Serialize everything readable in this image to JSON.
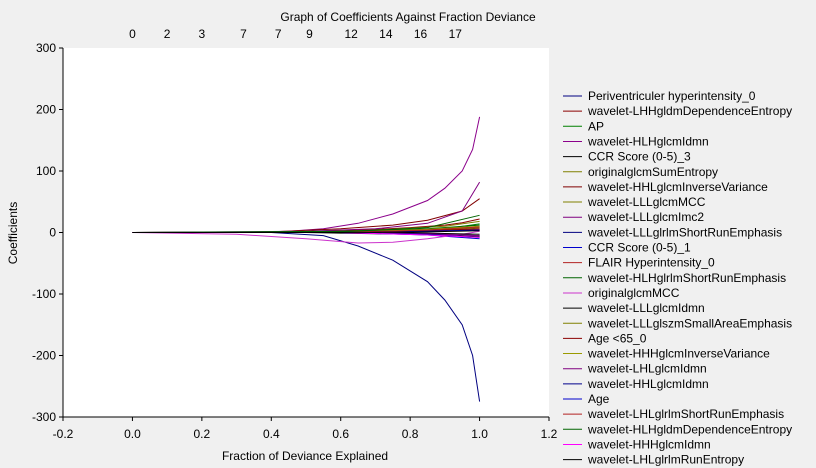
{
  "chart_data": {
    "type": "line",
    "title": "Graph of Coefficients Against Fraction Deviance",
    "xlabel": "Fraction of Deviance Explained",
    "ylabel": "Coefficients",
    "xlim": [
      -0.2,
      1.2
    ],
    "ylim": [
      -300,
      300
    ],
    "xticks": [
      "-0.2",
      "0.0",
      "0.2",
      "0.4",
      "0.6",
      "0.8",
      "1.0",
      "1.2"
    ],
    "yticks": [
      "300",
      "200",
      "100",
      "0",
      "-100",
      "-200",
      "-300"
    ],
    "top_axis": {
      "positions": [
        0.0,
        0.1,
        0.2,
        0.32,
        0.42,
        0.51,
        0.63,
        0.73,
        0.83,
        0.93
      ],
      "labels": [
        "0",
        "2",
        "3",
        "7",
        "7",
        "9",
        "12",
        "14",
        "16",
        "17"
      ]
    },
    "legend_position": "right",
    "series": [
      {
        "name": "Periventriculer hyperintensity_0",
        "color": "#000080",
        "x": [
          0.0,
          0.2,
          0.4,
          0.55,
          0.65,
          0.75,
          0.85,
          0.9,
          0.95,
          0.98,
          1.0
        ],
        "y": [
          0,
          0,
          0,
          -5,
          -22,
          -45,
          -80,
          -110,
          -150,
          -200,
          -275
        ]
      },
      {
        "name": "wavelet-LHHgldmDependenceEntropy",
        "color": "#8b0000",
        "x": [
          0.0,
          0.4,
          0.6,
          0.7,
          0.8,
          0.9,
          0.95,
          1.0
        ],
        "y": [
          0,
          0,
          3,
          5,
          8,
          12,
          16,
          22
        ]
      },
      {
        "name": "AP",
        "color": "#008000",
        "x": [
          0.0,
          0.5,
          0.7,
          0.9,
          1.0
        ],
        "y": [
          0,
          1,
          3,
          6,
          14
        ]
      },
      {
        "name": "wavelet-HLHglcmIdmn",
        "color": "#8b008b",
        "x": [
          0.0,
          0.3,
          0.45,
          0.55,
          0.65,
          0.75,
          0.85,
          0.9,
          0.95,
          0.98,
          1.0
        ],
        "y": [
          0,
          0,
          2,
          6,
          15,
          30,
          52,
          72,
          100,
          135,
          188
        ]
      },
      {
        "name": "CCR Score (0-5)_3",
        "color": "#000000",
        "x": [
          0.0,
          0.5,
          0.8,
          1.0
        ],
        "y": [
          0,
          0,
          -3,
          -7
        ]
      },
      {
        "name": "originalglcmSumEntropy",
        "color": "#808000",
        "x": [
          0.0,
          0.5,
          0.8,
          0.95,
          1.0
        ],
        "y": [
          0,
          0,
          3,
          6,
          8
        ]
      },
      {
        "name": "wavelet-HHLglcmInverseVariance",
        "color": "#800000",
        "x": [
          0.0,
          0.4,
          0.6,
          0.75,
          0.85,
          0.95,
          1.0
        ],
        "y": [
          0,
          1,
          6,
          12,
          20,
          35,
          55
        ]
      },
      {
        "name": "wavelet-LLLglcmMCC",
        "color": "#808000",
        "x": [
          0.0,
          0.5,
          0.7,
          0.9,
          1.0
        ],
        "y": [
          0,
          0,
          4,
          10,
          18
        ]
      },
      {
        "name": "wavelet-LLLglcmImc2",
        "color": "#800080",
        "x": [
          0.0,
          0.5,
          0.7,
          0.85,
          0.95,
          1.0
        ],
        "y": [
          0,
          2,
          6,
          15,
          35,
          82
        ]
      },
      {
        "name": "wavelet-LLLglrlmShortRunEmphasis",
        "color": "#000080",
        "x": [
          0.0,
          0.6,
          0.85,
          1.0
        ],
        "y": [
          0,
          0,
          -2,
          -5
        ]
      },
      {
        "name": "CCR Score (0-5)_1",
        "color": "#0000cd",
        "x": [
          0.0,
          0.6,
          0.85,
          1.0
        ],
        "y": [
          0,
          0,
          -4,
          -10
        ]
      },
      {
        "name": "FLAIR Hyperintensity_0",
        "color": "#b22222",
        "x": [
          0.0,
          0.6,
          0.8,
          1.0
        ],
        "y": [
          0,
          0,
          2,
          5
        ]
      },
      {
        "name": "wavelet-HLHglrlmShortRunEmphasis",
        "color": "#006400",
        "x": [
          0.0,
          0.6,
          0.85,
          1.0
        ],
        "y": [
          0,
          2,
          6,
          12
        ]
      },
      {
        "name": "originalglcmMCC",
        "color": "#cc33cc",
        "x": [
          0.0,
          0.3,
          0.5,
          0.65,
          0.75,
          0.85,
          0.95,
          1.0
        ],
        "y": [
          0,
          -3,
          -10,
          -17,
          -16,
          -10,
          -3,
          2
        ]
      },
      {
        "name": "wavelet-LLLglcmIdmn",
        "color": "#000000",
        "x": [
          0.0,
          0.6,
          0.85,
          1.0
        ],
        "y": [
          0,
          0,
          -1,
          -3
        ]
      },
      {
        "name": "wavelet-LLLglszmSmallAreaEmphasis",
        "color": "#808000",
        "x": [
          0.0,
          0.6,
          0.85,
          1.0
        ],
        "y": [
          0,
          0,
          2,
          4
        ]
      },
      {
        "name": "Age <65_0",
        "color": "#8b0000",
        "x": [
          0.0,
          0.6,
          0.85,
          1.0
        ],
        "y": [
          0,
          0,
          3,
          6
        ]
      },
      {
        "name": "wavelet-HHHglcmInverseVariance",
        "color": "#9a9a00",
        "x": [
          0.0,
          0.6,
          0.85,
          1.0
        ],
        "y": [
          0,
          0,
          5,
          10
        ]
      },
      {
        "name": "wavelet-LHLglcmIdmn",
        "color": "#800080",
        "x": [
          0.0,
          0.6,
          0.85,
          1.0
        ],
        "y": [
          0,
          0,
          -2,
          -5
        ]
      },
      {
        "name": "wavelet-HHLglcmIdmn",
        "color": "#00008b",
        "x": [
          0.0,
          0.6,
          0.85,
          1.0
        ],
        "y": [
          0,
          0,
          -3,
          -8
        ]
      },
      {
        "name": "Age",
        "color": "#0000cd",
        "x": [
          0.0,
          0.6,
          0.85,
          1.0
        ],
        "y": [
          0,
          0,
          2,
          4
        ]
      },
      {
        "name": "wavelet-LHLglrlmShortRunEmphasis",
        "color": "#b22222",
        "x": [
          0.0,
          0.6,
          0.85,
          1.0
        ],
        "y": [
          0,
          0,
          4,
          9
        ]
      },
      {
        "name": "wavelet-HLHgldmDependenceEntropy",
        "color": "#006400",
        "x": [
          0.0,
          0.6,
          0.85,
          1.0
        ],
        "y": [
          0,
          1,
          8,
          28
        ]
      },
      {
        "name": "wavelet-HHHglcmIdmn",
        "color": "#ff00ff",
        "x": [
          0.0,
          0.6,
          0.85,
          1.0
        ],
        "y": [
          0,
          0,
          -4,
          -8
        ]
      },
      {
        "name": "wavelet-LHLglrlmRunEntropy",
        "color": "#000000",
        "x": [
          0.0,
          0.6,
          0.85,
          1.0
        ],
        "y": [
          0,
          0,
          1,
          3
        ]
      }
    ]
  }
}
